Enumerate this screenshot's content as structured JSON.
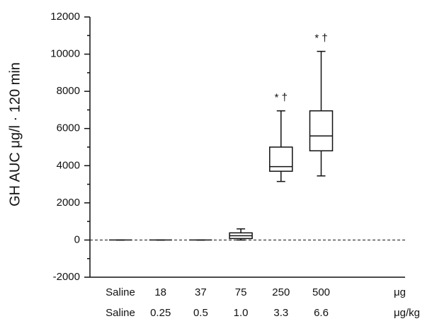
{
  "chart_data": {
    "type": "box",
    "y_label": "GH AUC μg/l · 120 min",
    "categories": [
      "Saline",
      "18",
      "37",
      "75",
      "250",
      "500"
    ],
    "categories_per_kg": [
      "Saline",
      "0.25",
      "0.5",
      "1.0",
      "3.3",
      "6.6"
    ],
    "x_unit": "μg",
    "x_unit_per_kg": "μg/kg",
    "boxes": [
      {
        "min": 0,
        "q1": 0,
        "median": 0,
        "q3": 0,
        "max": 0
      },
      {
        "min": 0,
        "q1": 0,
        "median": 0,
        "q3": 0,
        "max": 0
      },
      {
        "min": 0,
        "q1": 0,
        "median": 0,
        "q3": 0,
        "max": 0
      },
      {
        "min": 0,
        "q1": 80,
        "median": 230,
        "q3": 385,
        "max": 600
      },
      {
        "min": 3150,
        "q1": 3700,
        "median": 3950,
        "q3": 5000,
        "max": 6950,
        "annotation": "* †"
      },
      {
        "min": 3450,
        "q1": 4800,
        "median": 5600,
        "q3": 6950,
        "max": 10150,
        "annotation": "* †"
      }
    ],
    "reference_line": 0,
    "ylim": [
      -2000,
      12000
    ],
    "yticks": [
      -2000,
      0,
      2000,
      4000,
      6000,
      8000,
      10000,
      12000
    ],
    "yminorticks": [
      -1000,
      1000,
      3000,
      5000,
      7000,
      9000,
      11000
    ]
  }
}
